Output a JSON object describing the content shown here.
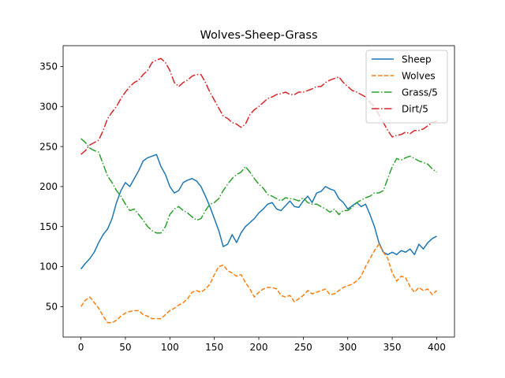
{
  "chart_data": {
    "type": "line",
    "title": "Wolves-Sheep-Grass",
    "xlabel": "",
    "ylabel": "",
    "xlim": [
      -20,
      420
    ],
    "ylim": [
      12,
      376
    ],
    "xticks": [
      0,
      50,
      100,
      150,
      200,
      250,
      300,
      350,
      400
    ],
    "yticks": [
      50,
      100,
      150,
      200,
      250,
      300,
      350
    ],
    "grid": false,
    "legend": {
      "placement": "top-right"
    },
    "series": [
      {
        "name": "Sheep",
        "color": "#1f77b4",
        "dash": "solid",
        "x": [
          0,
          5,
          10,
          15,
          20,
          25,
          30,
          35,
          40,
          45,
          50,
          55,
          60,
          65,
          70,
          75,
          80,
          85,
          90,
          95,
          100,
          105,
          110,
          115,
          120,
          125,
          130,
          135,
          140,
          145,
          150,
          155,
          160,
          165,
          170,
          175,
          180,
          185,
          190,
          195,
          200,
          205,
          210,
          215,
          220,
          225,
          230,
          235,
          240,
          245,
          250,
          255,
          260,
          265,
          270,
          275,
          280,
          285,
          290,
          295,
          300,
          305,
          310,
          315,
          320,
          325,
          330,
          335,
          340,
          345,
          350,
          355,
          360,
          365,
          370,
          375,
          380,
          385,
          390,
          395,
          400
        ],
        "y": [
          97,
          104,
          110,
          118,
          130,
          140,
          147,
          160,
          180,
          195,
          205,
          200,
          210,
          220,
          232,
          236,
          238,
          240,
          225,
          215,
          200,
          192,
          195,
          205,
          208,
          210,
          207,
          200,
          188,
          175,
          160,
          145,
          125,
          128,
          140,
          130,
          142,
          150,
          155,
          160,
          167,
          172,
          178,
          180,
          172,
          170,
          176,
          182,
          175,
          174,
          182,
          188,
          180,
          192,
          194,
          200,
          197,
          195,
          185,
          180,
          172,
          176,
          180,
          175,
          178,
          165,
          150,
          130,
          118,
          115,
          118,
          115,
          120,
          118,
          122,
          115,
          128,
          122,
          130,
          135,
          138
        ]
      },
      {
        "name": "Wolves",
        "color": "#ff7f0e",
        "dash": "dashed",
        "x": [
          0,
          5,
          10,
          15,
          20,
          25,
          30,
          35,
          40,
          45,
          50,
          55,
          60,
          65,
          70,
          75,
          80,
          85,
          90,
          95,
          100,
          105,
          110,
          115,
          120,
          125,
          130,
          135,
          140,
          145,
          150,
          155,
          160,
          165,
          170,
          175,
          180,
          185,
          190,
          195,
          200,
          205,
          210,
          215,
          220,
          225,
          230,
          235,
          240,
          245,
          250,
          255,
          260,
          265,
          270,
          275,
          280,
          285,
          290,
          295,
          300,
          305,
          310,
          315,
          320,
          325,
          330,
          335,
          340,
          345,
          350,
          355,
          360,
          365,
          370,
          375,
          380,
          385,
          390,
          395,
          400
        ],
        "y": [
          50,
          58,
          62,
          55,
          48,
          38,
          30,
          30,
          33,
          38,
          42,
          44,
          45,
          45,
          40,
          38,
          35,
          35,
          35,
          40,
          45,
          48,
          52,
          55,
          60,
          68,
          70,
          68,
          72,
          78,
          90,
          100,
          102,
          95,
          92,
          88,
          90,
          80,
          72,
          62,
          68,
          72,
          74,
          74,
          72,
          64,
          62,
          64,
          56,
          60,
          64,
          70,
          66,
          68,
          70,
          72,
          65,
          66,
          70,
          74,
          76,
          78,
          82,
          88,
          100,
          110,
          120,
          128,
          118,
          110,
          92,
          82,
          88,
          86,
          75,
          68,
          74,
          70,
          72,
          65,
          70
        ]
      },
      {
        "name": "Grass/5",
        "color": "#2ca02c",
        "dash": "dashdot",
        "x": [
          0,
          5,
          10,
          15,
          20,
          25,
          30,
          35,
          40,
          45,
          50,
          55,
          60,
          65,
          70,
          75,
          80,
          85,
          90,
          95,
          100,
          105,
          110,
          115,
          120,
          125,
          130,
          135,
          140,
          145,
          150,
          155,
          160,
          165,
          170,
          175,
          180,
          185,
          190,
          195,
          200,
          205,
          210,
          215,
          220,
          225,
          230,
          235,
          240,
          245,
          250,
          255,
          260,
          265,
          270,
          275,
          280,
          285,
          290,
          295,
          300,
          305,
          310,
          315,
          320,
          325,
          330,
          335,
          340,
          345,
          350,
          355,
          360,
          365,
          370,
          375,
          380,
          385,
          390,
          395,
          400
        ],
        "y": [
          260,
          255,
          248,
          245,
          243,
          228,
          213,
          205,
          195,
          188,
          178,
          170,
          172,
          165,
          158,
          150,
          145,
          142,
          142,
          150,
          165,
          172,
          175,
          170,
          167,
          162,
          158,
          160,
          170,
          178,
          180,
          185,
          195,
          203,
          210,
          215,
          218,
          225,
          218,
          210,
          203,
          198,
          190,
          188,
          185,
          182,
          186,
          185,
          184,
          182,
          186,
          180,
          178,
          178,
          175,
          172,
          168,
          172,
          165,
          170,
          170,
          174,
          180,
          183,
          186,
          188,
          192,
          192,
          195,
          210,
          225,
          235,
          233,
          236,
          238,
          235,
          232,
          230,
          228,
          222,
          218
        ]
      },
      {
        "name": "Dirt/5",
        "color": "#d62728",
        "dash": "dashdot",
        "x": [
          0,
          5,
          10,
          15,
          20,
          25,
          30,
          35,
          40,
          45,
          50,
          55,
          60,
          65,
          70,
          75,
          80,
          85,
          90,
          95,
          100,
          105,
          110,
          115,
          120,
          125,
          130,
          135,
          140,
          145,
          150,
          155,
          160,
          165,
          170,
          175,
          180,
          185,
          190,
          195,
          200,
          205,
          210,
          215,
          220,
          225,
          230,
          235,
          240,
          245,
          250,
          255,
          260,
          265,
          270,
          275,
          280,
          285,
          290,
          295,
          300,
          305,
          310,
          315,
          320,
          325,
          330,
          335,
          340,
          345,
          350,
          355,
          360,
          365,
          370,
          375,
          380,
          385,
          390,
          395,
          400
        ],
        "y": [
          240,
          245,
          252,
          255,
          258,
          270,
          285,
          293,
          300,
          310,
          318,
          325,
          330,
          333,
          340,
          345,
          355,
          358,
          360,
          355,
          345,
          330,
          325,
          330,
          333,
          338,
          340,
          340,
          330,
          318,
          308,
          298,
          288,
          285,
          280,
          278,
          274,
          278,
          290,
          296,
          300,
          305,
          310,
          312,
          315,
          316,
          318,
          315,
          315,
          318,
          318,
          320,
          322,
          325,
          325,
          330,
          333,
          335,
          337,
          330,
          325,
          320,
          318,
          315,
          312,
          305,
          300,
          290,
          280,
          270,
          262,
          264,
          265,
          268,
          266,
          270,
          270,
          272,
          276,
          280,
          282
        ]
      }
    ]
  }
}
